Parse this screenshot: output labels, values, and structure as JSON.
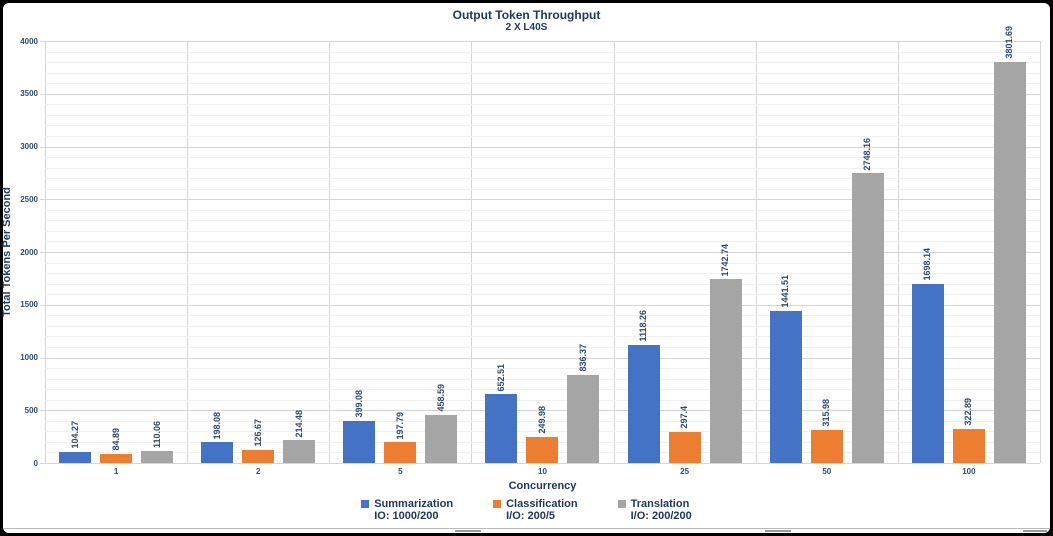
{
  "chart_data": {
    "type": "bar",
    "title": "Output Token Throughput",
    "subtitle": "2 X L40S",
    "xlabel": "Concurrency",
    "ylabel": "Total Tokens Per Second",
    "categories": [
      "1",
      "2",
      "5",
      "10",
      "25",
      "50",
      "100"
    ],
    "series": [
      {
        "name": "Summarization",
        "sublabel": "IO: 1000/200",
        "color": "#4472C4",
        "values": [
          104.27,
          198.08,
          399.08,
          652.51,
          1118.26,
          1441.51,
          1698.14
        ]
      },
      {
        "name": "Classification",
        "sublabel": "I/O:  200/5",
        "color": "#ED7D31",
        "values": [
          84.89,
          126.67,
          197.79,
          249.98,
          297.4,
          315.98,
          322.89
        ]
      },
      {
        "name": "Translation",
        "sublabel": "I/O: 200/200",
        "color": "#A5A5A5",
        "values": [
          110.06,
          214.48,
          458.59,
          836.37,
          1742.74,
          2748.16,
          3801.69
        ]
      }
    ],
    "ylim": [
      0,
      4000
    ],
    "ytick_step": 500,
    "yticks": [
      "0",
      "500",
      "1000",
      "1500",
      "2000",
      "2500",
      "3000",
      "3500",
      "4000"
    ],
    "minor_tick_step": 100,
    "grid": true,
    "legend_position": "bottom"
  },
  "colors": {
    "title_text": "#1F3864",
    "label_text": "#2E4B6E",
    "grid_major": "#D6D6D6",
    "grid_minor": "#F0F0F0",
    "axis_line": "#D6D6D6"
  }
}
